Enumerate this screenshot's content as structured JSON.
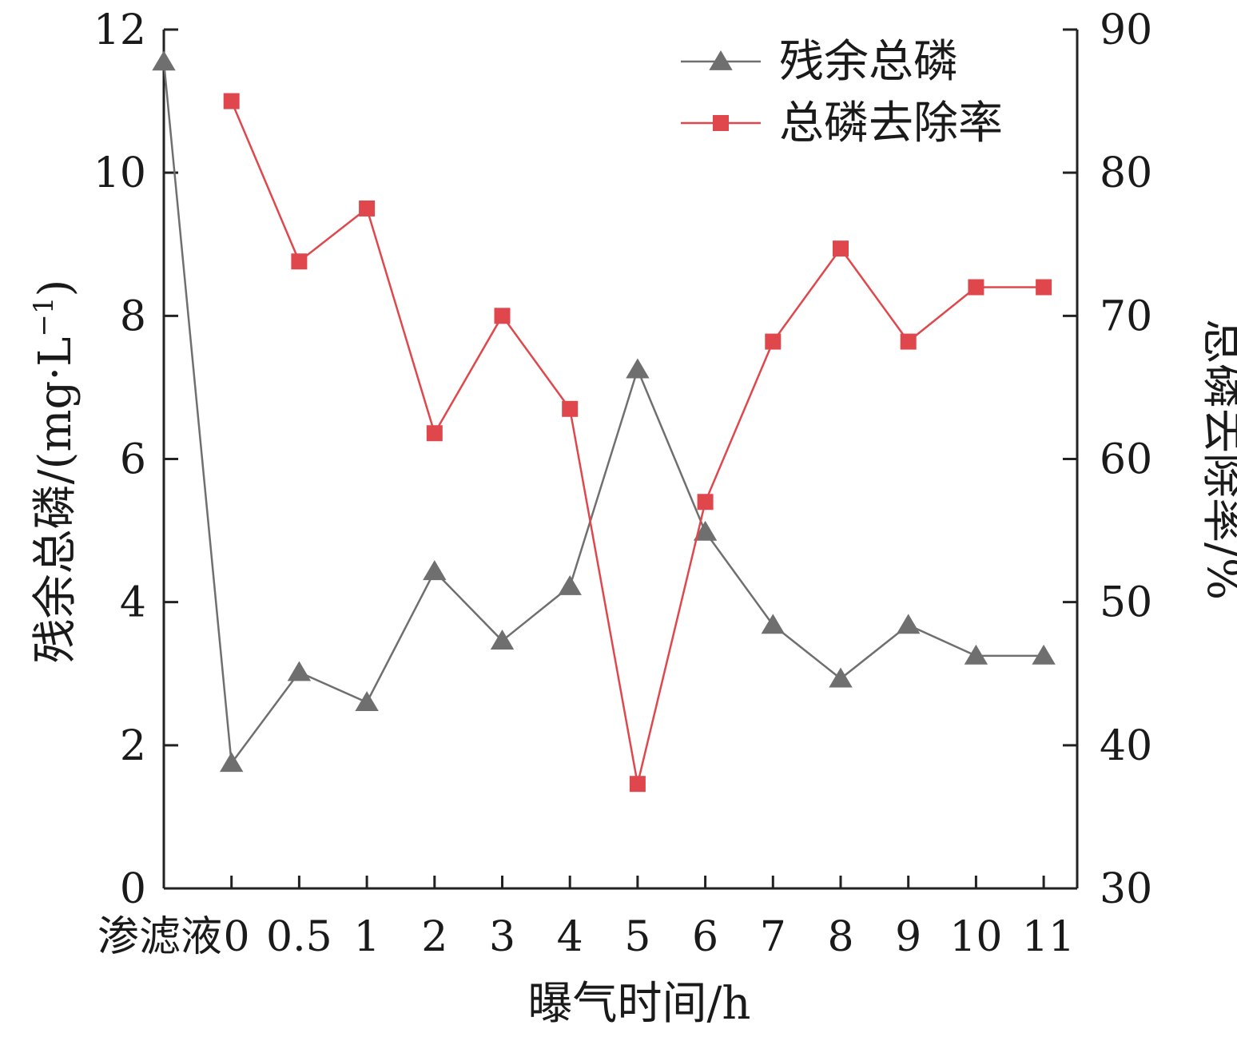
{
  "chart_data": {
    "type": "line",
    "categories": [
      "渗滤液",
      "0",
      "0.5",
      "1",
      "2",
      "3",
      "4",
      "5",
      "6",
      "7",
      "8",
      "9",
      "10",
      "11"
    ],
    "xlabel": "曝气时间/h",
    "ylabel_left": "残余总磷/(mg·L",
    "ylabel_left_sup": "−1",
    "ylabel_left_close": ")",
    "ylabel_right": "总磷去除率/%",
    "ylim_left": [
      0,
      12
    ],
    "yticks_left": [
      0,
      2,
      4,
      6,
      8,
      10,
      12
    ],
    "ylim_right": [
      30,
      90
    ],
    "yticks_right": [
      30,
      40,
      50,
      60,
      70,
      80,
      90
    ],
    "grid": false,
    "legend_position": "top-right",
    "series": [
      {
        "name": "残余总磷",
        "axis": "left",
        "marker": "triangle",
        "color": "#6f6f6f",
        "values": [
          11.55,
          1.75,
          3.02,
          2.6,
          4.43,
          3.46,
          4.22,
          7.25,
          4.98,
          3.68,
          2.93,
          3.68,
          3.25,
          3.25
        ]
      },
      {
        "name": "总磷去除率",
        "axis": "right",
        "marker": "square",
        "color": "#e0474c",
        "values": [
          null,
          85.0,
          73.8,
          77.5,
          61.8,
          70.0,
          63.5,
          37.3,
          57.0,
          68.2,
          74.7,
          68.2,
          72.0,
          72.0
        ]
      }
    ]
  }
}
